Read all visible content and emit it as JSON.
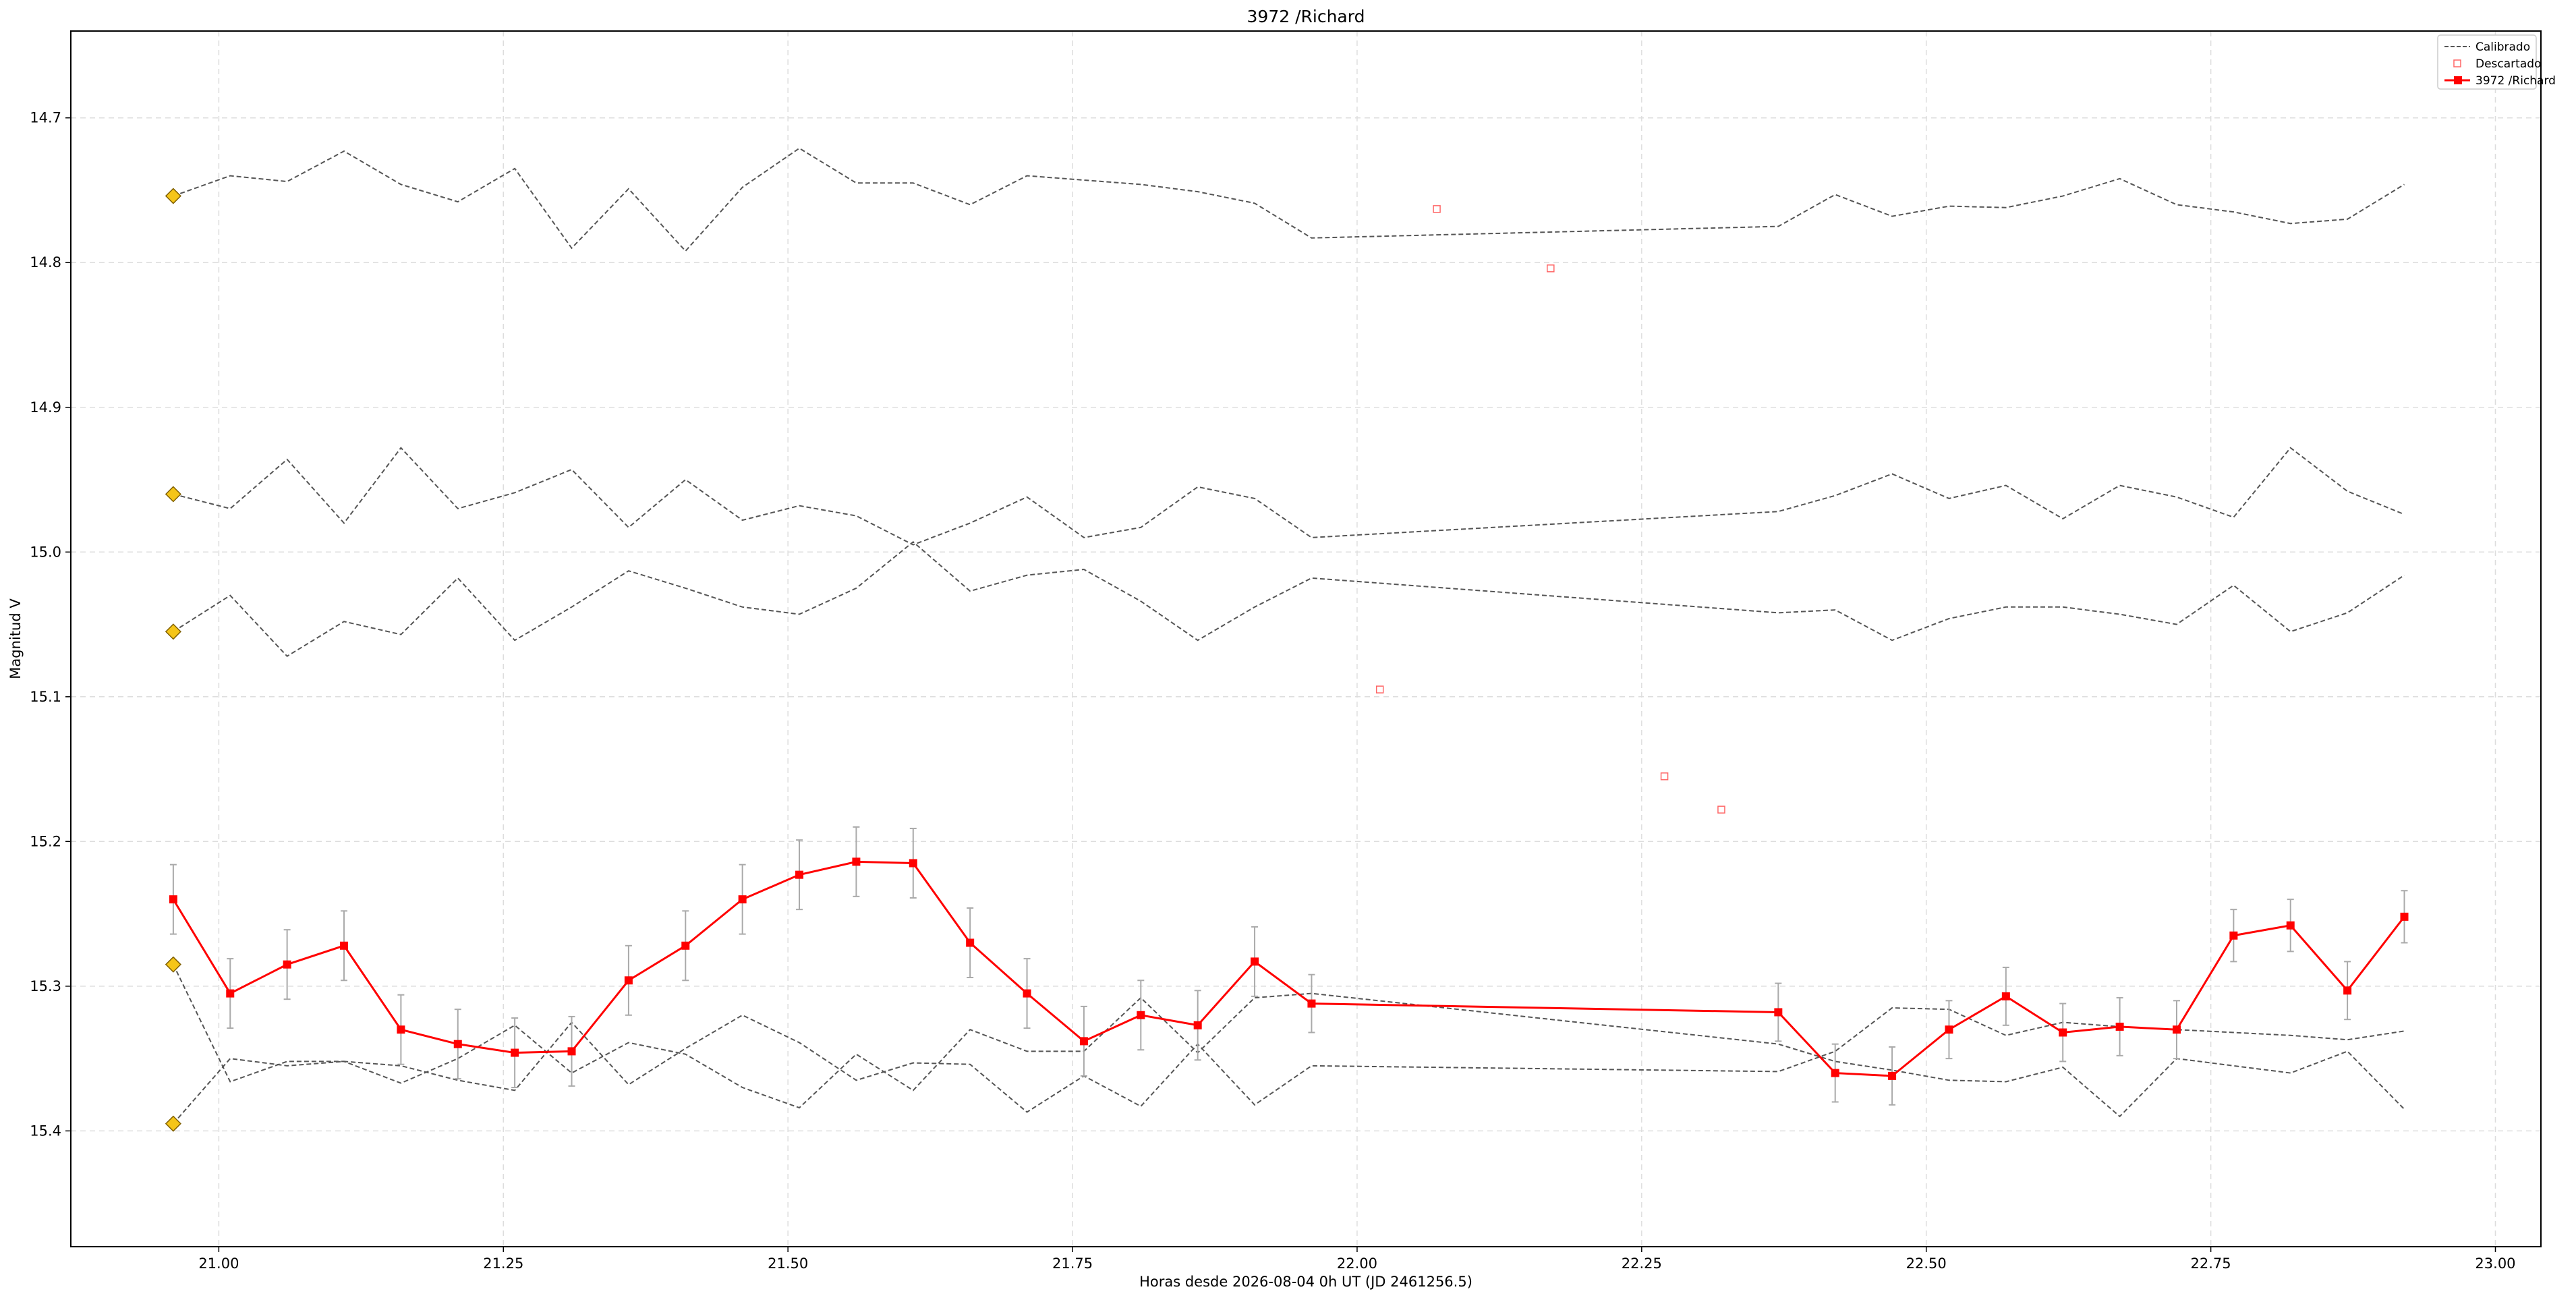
{
  "chart_data": {
    "type": "line",
    "title": "3972 /Richard",
    "xlabel": "Horas desde 2026-08-04 0h UT (JD 2461256.5)",
    "ylabel": "Magnitud V",
    "xlim": [
      20.87,
      23.04
    ],
    "ylim": [
      15.48,
      14.64
    ],
    "y_inverted": true,
    "grid": true,
    "legend_position": "top-right",
    "xticks": [
      {
        "value": 21.0,
        "label": "21.00"
      },
      {
        "value": 21.25,
        "label": "21.25"
      },
      {
        "value": 21.5,
        "label": "21.50"
      },
      {
        "value": 21.75,
        "label": "21.75"
      },
      {
        "value": 22.0,
        "label": "22.00"
      },
      {
        "value": 22.25,
        "label": "22.25"
      },
      {
        "value": 22.5,
        "label": "22.50"
      },
      {
        "value": 22.75,
        "label": "22.75"
      },
      {
        "value": 23.0,
        "label": "23.00"
      }
    ],
    "yticks": [
      {
        "value": 14.7,
        "label": "14.7"
      },
      {
        "value": 14.8,
        "label": "14.8"
      },
      {
        "value": 14.9,
        "label": "14.9"
      },
      {
        "value": 15.0,
        "label": "15.0"
      },
      {
        "value": 15.1,
        "label": "15.1"
      },
      {
        "value": 15.2,
        "label": "15.2"
      },
      {
        "value": 15.3,
        "label": "15.3"
      },
      {
        "value": 15.4,
        "label": "15.4"
      }
    ],
    "legend": [
      {
        "label": "Calibrado",
        "style": "dashed-line"
      },
      {
        "label": "Descartado",
        "style": "hollow-square"
      },
      {
        "label": "3972 /Richard",
        "style": "line-marker"
      }
    ],
    "colors": {
      "target": "#ff0000",
      "comparison": "#555555",
      "discarded": "#ff6666",
      "anchor_fill": "#f5c518",
      "anchor_edge": "#806000",
      "errorbar": "#aaaaaa",
      "grid": "#dddddd"
    },
    "target": {
      "name": "3972 /Richard",
      "x": [
        20.96,
        21.01,
        21.06,
        21.11,
        21.16,
        21.21,
        21.26,
        21.31,
        21.36,
        21.41,
        21.46,
        21.51,
        21.56,
        21.61,
        21.66,
        21.71,
        21.76,
        21.81,
        21.86,
        21.91,
        21.96,
        22.37,
        22.42,
        22.47,
        22.52,
        22.57,
        22.62,
        22.67,
        22.72,
        22.77,
        22.82,
        22.87,
        22.92
      ],
      "y": [
        15.24,
        15.305,
        15.285,
        15.272,
        15.33,
        15.34,
        15.346,
        15.345,
        15.296,
        15.272,
        15.24,
        15.223,
        15.214,
        15.215,
        15.27,
        15.305,
        15.338,
        15.32,
        15.327,
        15.283,
        15.312,
        15.318,
        15.36,
        15.362,
        15.33,
        15.307,
        15.332,
        15.328,
        15.33,
        15.265,
        15.258,
        15.303,
        15.252
      ],
      "err": [
        0.024,
        0.024,
        0.024,
        0.024,
        0.024,
        0.024,
        0.024,
        0.024,
        0.024,
        0.024,
        0.024,
        0.024,
        0.024,
        0.024,
        0.024,
        0.024,
        0.024,
        0.024,
        0.024,
        0.024,
        0.02,
        0.02,
        0.02,
        0.02,
        0.02,
        0.02,
        0.02,
        0.02,
        0.02,
        0.018,
        0.018,
        0.02,
        0.018
      ]
    },
    "comparison_x": [
      20.96,
      21.01,
      21.06,
      21.11,
      21.16,
      21.21,
      21.26,
      21.31,
      21.36,
      21.41,
      21.46,
      21.51,
      21.56,
      21.61,
      21.66,
      21.71,
      21.76,
      21.81,
      21.86,
      21.91,
      21.96,
      22.37,
      22.42,
      22.47,
      22.52,
      22.57,
      22.62,
      22.67,
      22.72,
      22.77,
      22.82,
      22.87,
      22.92
    ],
    "comparison_series": [
      [
        14.754,
        14.74,
        14.744,
        14.723,
        14.746,
        14.758,
        14.735,
        14.79,
        14.749,
        14.792,
        14.748,
        14.721,
        14.745,
        14.745,
        14.76,
        14.74,
        14.743,
        14.746,
        14.751,
        14.759,
        14.783,
        14.775,
        14.753,
        14.768,
        14.761,
        14.762,
        14.754,
        14.742,
        14.76,
        14.765,
        14.773,
        14.77,
        14.746
      ],
      [
        14.96,
        14.97,
        14.936,
        14.98,
        14.928,
        14.97,
        14.959,
        14.943,
        14.983,
        14.95,
        14.978,
        14.968,
        14.975,
        14.995,
        14.98,
        14.962,
        14.99,
        14.983,
        14.955,
        14.963,
        14.99,
        14.972,
        14.961,
        14.946,
        14.963,
        14.954,
        14.977,
        14.954,
        14.962,
        14.976,
        14.928,
        14.958,
        14.974
      ],
      [
        15.055,
        15.03,
        15.072,
        15.048,
        15.057,
        15.018,
        15.061,
        15.038,
        15.013,
        15.025,
        15.038,
        15.043,
        15.025,
        14.993,
        15.027,
        15.016,
        15.012,
        15.034,
        15.061,
        15.038,
        15.018,
        15.042,
        15.04,
        15.061,
        15.046,
        15.038,
        15.038,
        15.043,
        15.05,
        15.023,
        15.055,
        15.042,
        15.016
      ],
      [
        15.285,
        15.366,
        15.352,
        15.352,
        15.367,
        15.35,
        15.327,
        15.36,
        15.339,
        15.347,
        15.37,
        15.384,
        15.347,
        15.372,
        15.33,
        15.345,
        15.345,
        15.308,
        15.346,
        15.308,
        15.305,
        15.34,
        15.352,
        15.358,
        15.365,
        15.366,
        15.356,
        15.39,
        15.35,
        15.355,
        15.36,
        15.345,
        15.385
      ],
      [
        15.395,
        15.35,
        15.355,
        15.352,
        15.355,
        15.365,
        15.372,
        15.325,
        15.368,
        15.343,
        15.32,
        15.339,
        15.365,
        15.353,
        15.354,
        15.387,
        15.362,
        15.383,
        15.34,
        15.382,
        15.355,
        15.359,
        15.345,
        15.315,
        15.316,
        15.334,
        15.325,
        15.328,
        15.33,
        15.332,
        15.334,
        15.337,
        15.331
      ]
    ],
    "anchors": {
      "x": 20.96,
      "y": [
        14.754,
        14.96,
        15.055,
        15.285,
        15.395
      ]
    },
    "discarded": {
      "name": "Descartado",
      "x": [
        22.07,
        22.17,
        22.02,
        22.27,
        22.32
      ],
      "y": [
        14.763,
        14.804,
        15.095,
        15.155,
        15.178
      ]
    }
  }
}
